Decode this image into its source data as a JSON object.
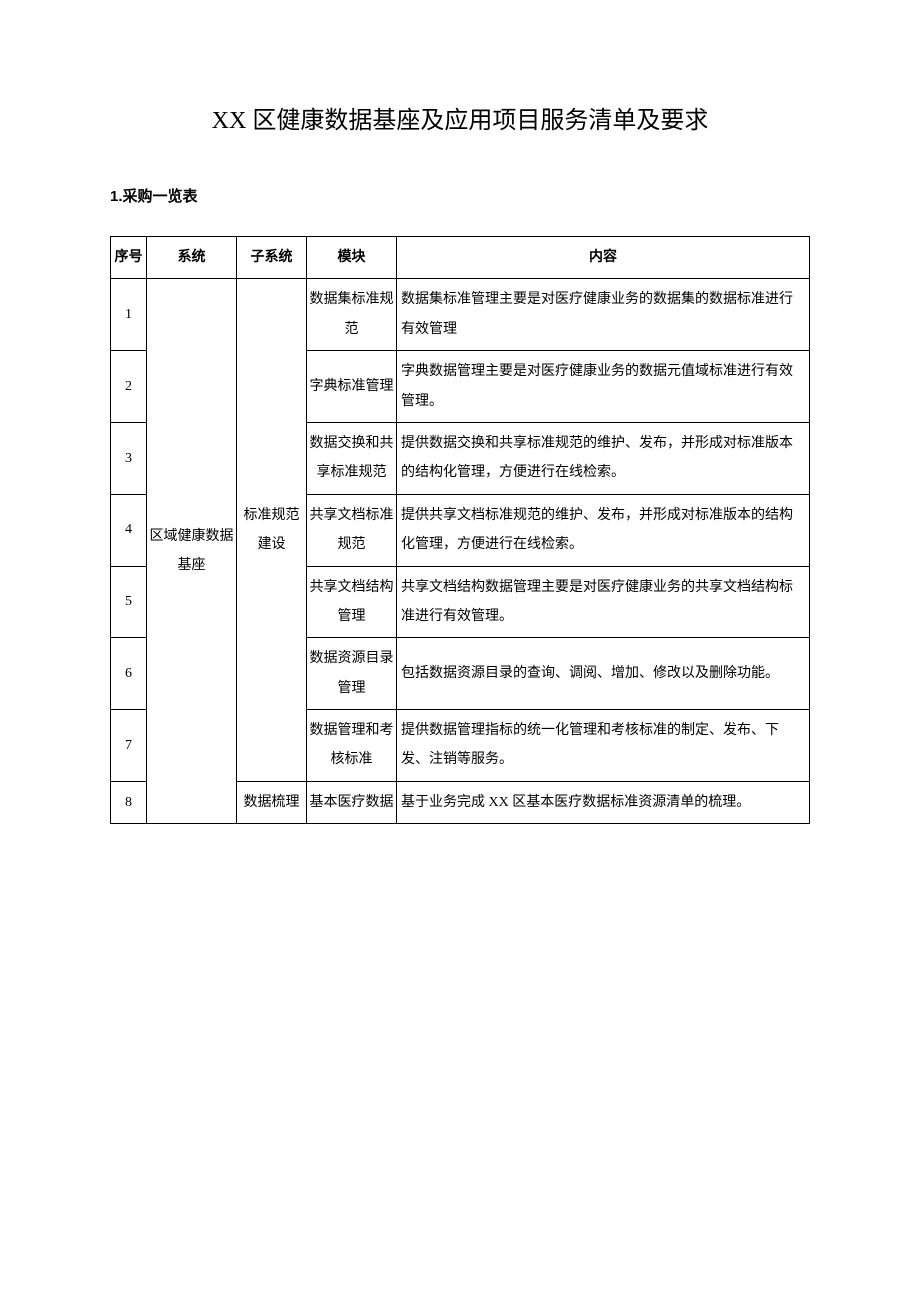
{
  "page": {
    "title": "XX 区健康数据基座及应用项目服务清单及要求",
    "section_header": "1.采购一览表"
  },
  "table": {
    "headers": {
      "seq": "序号",
      "system": "系统",
      "subsystem": "子系统",
      "module": "模块",
      "content": "内容"
    },
    "system_label": "区域健康数据基座",
    "subsystems": {
      "standard": "标准规范建设",
      "data_comb": "数据梳理"
    },
    "rows": [
      {
        "seq": "1",
        "module": "数据集标准规范",
        "content": "数据集标准管理主要是对医疗健康业务的数据集的数据标准进行有效管理"
      },
      {
        "seq": "2",
        "module": "字典标准管理",
        "content": "字典数据管理主要是对医疗健康业务的数据元值域标准进行有效管理。"
      },
      {
        "seq": "3",
        "module": "数据交换和共享标准规范",
        "content": "提供数据交换和共享标准规范的维护、发布，并形成对标准版本的结构化管理，方便进行在线检索。"
      },
      {
        "seq": "4",
        "module": "共享文档标准规范",
        "content": "提供共享文档标准规范的维护、发布，并形成对标准版本的结构化管理，方便进行在线检索。"
      },
      {
        "seq": "5",
        "module": "共享文档结构管理",
        "content": "共享文档结构数据管理主要是对医疗健康业务的共享文档结构标准进行有效管理。"
      },
      {
        "seq": "6",
        "module": "数据资源目录管理",
        "content": "包括数据资源目录的查询、调阅、增加、修改以及删除功能。"
      },
      {
        "seq": "7",
        "module": "数据管理和考核标准",
        "content": "提供数据管理指标的统一化管理和考核标准的制定、发布、下发、注销等服务。"
      },
      {
        "seq": "8",
        "module": "基本医疗数据",
        "content": "基于业务完成 XX 区基本医疗数据标准资源清单的梳理。"
      }
    ]
  }
}
